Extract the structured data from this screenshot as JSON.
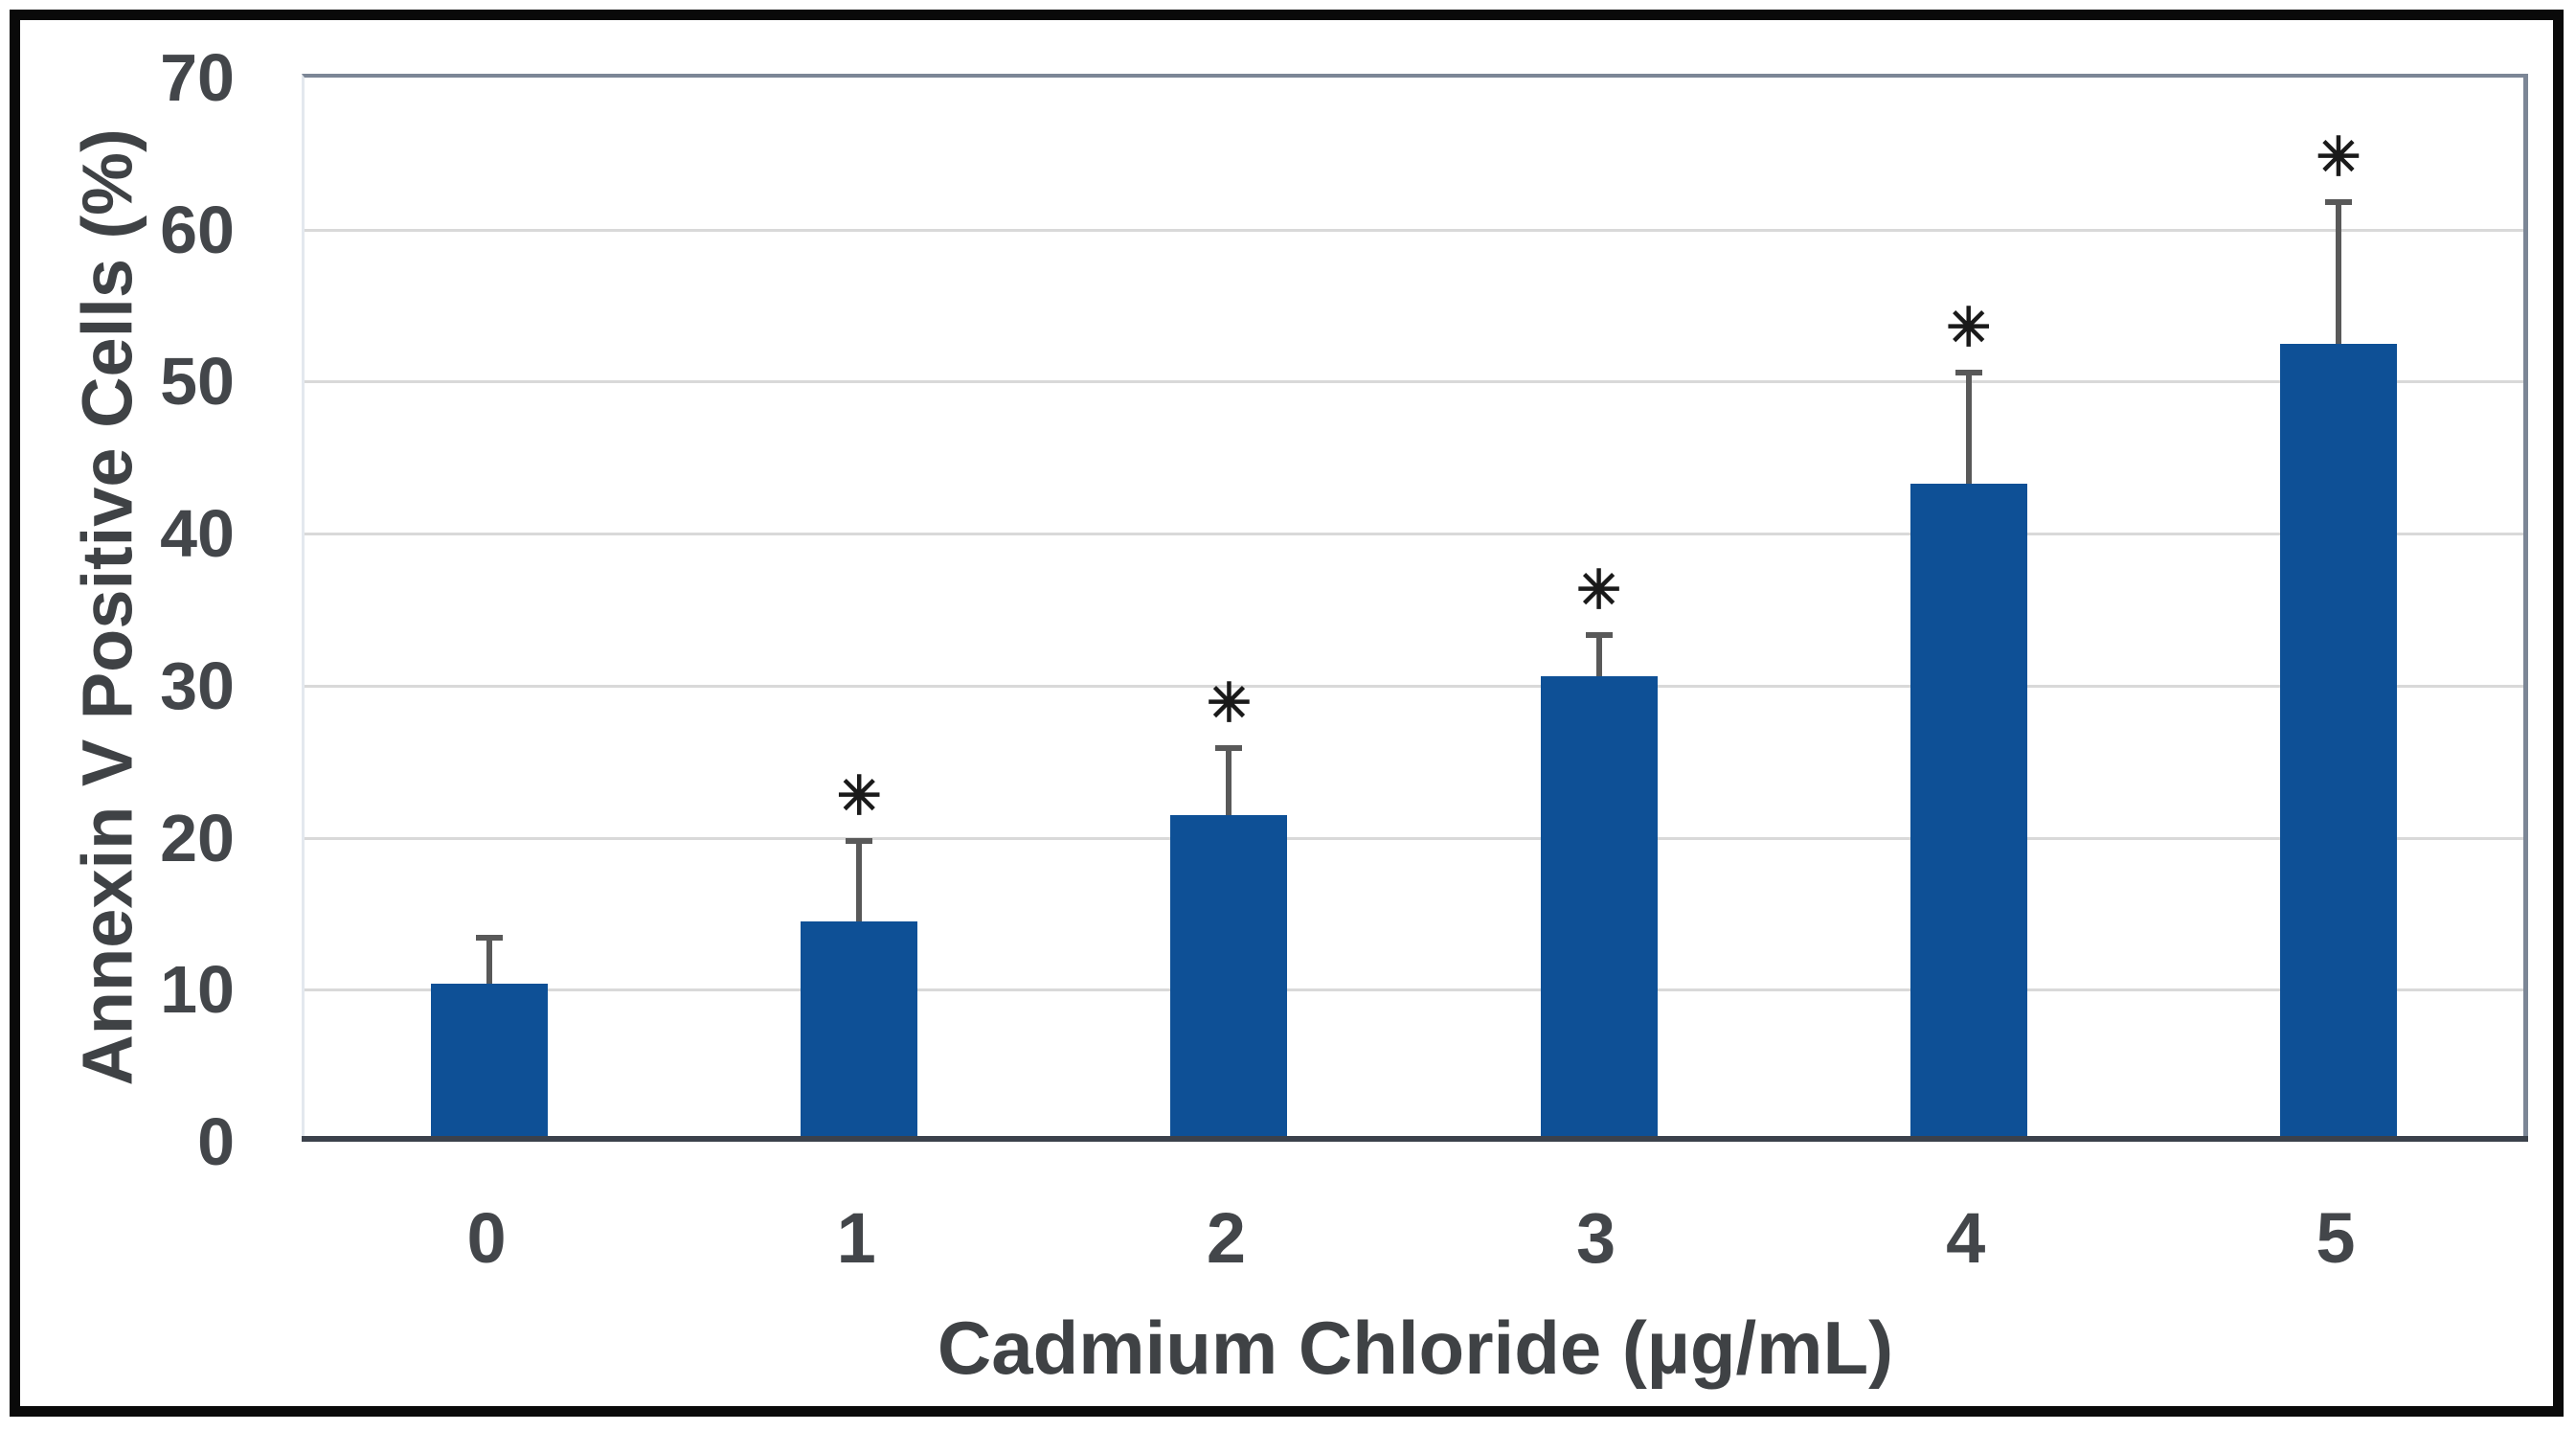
{
  "chart_data": {
    "type": "bar",
    "title": "",
    "xlabel": "Cadmium Chloride (µg/mL)",
    "ylabel": "Annexin V Positive Cells (%)",
    "categories": [
      "0",
      "1",
      "2",
      "3",
      "4",
      "5"
    ],
    "values": [
      10.4,
      14.5,
      21.5,
      30.6,
      43.3,
      52.5
    ],
    "error_upper": [
      3.2,
      5.5,
      4.6,
      2.9,
      7.5,
      9.5
    ],
    "significant": [
      false,
      true,
      true,
      true,
      true,
      true
    ],
    "significance_symbol": "✳",
    "ylim": [
      0,
      70
    ],
    "yticks": [
      0,
      10,
      20,
      30,
      40,
      50,
      60,
      70
    ],
    "grid": "horizontal",
    "legend": "none",
    "colors": {
      "bar_fill": "#0e5096",
      "error_bar": "#595959",
      "gridline": "#d9d9d9",
      "axis_line": "#3b414b",
      "plot_border": "#7c8696",
      "tick_text": "#43464a",
      "axis_title_text": "#3f4245",
      "asterisk": "#1a1a1a",
      "figure_border": "#0a0a0a",
      "background": "#ffffff"
    }
  }
}
